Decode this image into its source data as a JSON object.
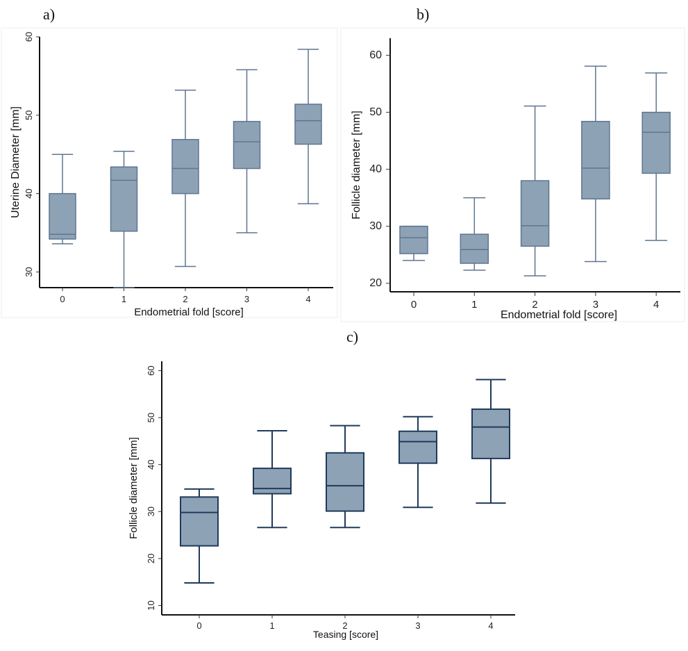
{
  "panel_labels": {
    "a": "a)",
    "b": "b)",
    "c": "c)"
  },
  "chart_data": [
    {
      "id": "a",
      "type": "box",
      "xlabel": "Endometrial fold [score]",
      "ylabel": "Uterine Diameter [mm]",
      "ylim": [
        28,
        60
      ],
      "yticks": [
        "30",
        "40",
        "50",
        "60"
      ],
      "categories": [
        "0",
        "1",
        "2",
        "3",
        "4"
      ],
      "boxes": [
        {
          "category": "0",
          "whisker_low": 33.6,
          "q1": 34.2,
          "median": 34.8,
          "q3": 40.0,
          "whisker_high": 45.0
        },
        {
          "category": "1",
          "whisker_low": 28.0,
          "q1": 35.2,
          "median": 41.7,
          "q3": 43.4,
          "whisker_high": 45.4
        },
        {
          "category": "2",
          "whisker_low": 30.7,
          "q1": 40.0,
          "median": 43.2,
          "q3": 46.9,
          "whisker_high": 53.2
        },
        {
          "category": "3",
          "whisker_low": 35.0,
          "q1": 43.2,
          "median": 46.6,
          "q3": 49.2,
          "whisker_high": 55.8
        },
        {
          "category": "4",
          "whisker_low": 38.7,
          "q1": 46.3,
          "median": 49.3,
          "q3": 51.4,
          "whisker_high": 58.4
        }
      ],
      "colors": {
        "fill": "#8ea2b6",
        "stroke": "#5f7590"
      }
    },
    {
      "id": "b",
      "type": "box",
      "xlabel": "Endometrial fold [score]",
      "ylabel": "Follicle diameter [mm]",
      "ylim": [
        18.5,
        63
      ],
      "yticks": [
        "20",
        "30",
        "40",
        "50",
        "60"
      ],
      "categories": [
        "0",
        "1",
        "2",
        "3",
        "4"
      ],
      "boxes": [
        {
          "category": "0",
          "whisker_low": 24.0,
          "q1": 25.2,
          "median": 28.0,
          "q3": 30.0,
          "whisker_high": 30.0
        },
        {
          "category": "1",
          "whisker_low": 22.3,
          "q1": 23.5,
          "median": 25.9,
          "q3": 28.6,
          "whisker_high": 35.0
        },
        {
          "category": "2",
          "whisker_low": 21.3,
          "q1": 26.5,
          "median": 30.1,
          "q3": 38.0,
          "whisker_high": 51.1
        },
        {
          "category": "3",
          "whisker_low": 23.8,
          "q1": 34.8,
          "median": 40.2,
          "q3": 48.4,
          "whisker_high": 58.1
        },
        {
          "category": "4",
          "whisker_low": 27.5,
          "q1": 39.3,
          "median": 46.5,
          "q3": 50.0,
          "whisker_high": 56.9
        }
      ],
      "colors": {
        "fill": "#8ea2b6",
        "stroke": "#5f7590"
      }
    },
    {
      "id": "c",
      "type": "box",
      "xlabel": "Teasing [score]",
      "ylabel": "Follicle diameter [mm]",
      "ylim": [
        8,
        62
      ],
      "yticks": [
        "10",
        "20",
        "30",
        "40",
        "50",
        "60"
      ],
      "categories": [
        "0",
        "1",
        "2",
        "3",
        "4"
      ],
      "boxes": [
        {
          "category": "0",
          "whisker_low": 14.8,
          "q1": 22.7,
          "median": 29.8,
          "q3": 33.1,
          "whisker_high": 34.8
        },
        {
          "category": "1",
          "whisker_low": 26.6,
          "q1": 33.8,
          "median": 34.9,
          "q3": 39.2,
          "whisker_high": 47.2
        },
        {
          "category": "2",
          "whisker_low": 26.6,
          "q1": 30.1,
          "median": 35.5,
          "q3": 42.5,
          "whisker_high": 48.3
        },
        {
          "category": "3",
          "whisker_low": 30.9,
          "q1": 40.3,
          "median": 44.9,
          "q3": 47.1,
          "whisker_high": 50.2
        },
        {
          "category": "4",
          "whisker_low": 31.8,
          "q1": 41.3,
          "median": 48.0,
          "q3": 51.8,
          "whisker_high": 58.1
        }
      ],
      "colors": {
        "fill": "#8ea2b6",
        "stroke": "#1f3a5a"
      }
    }
  ]
}
